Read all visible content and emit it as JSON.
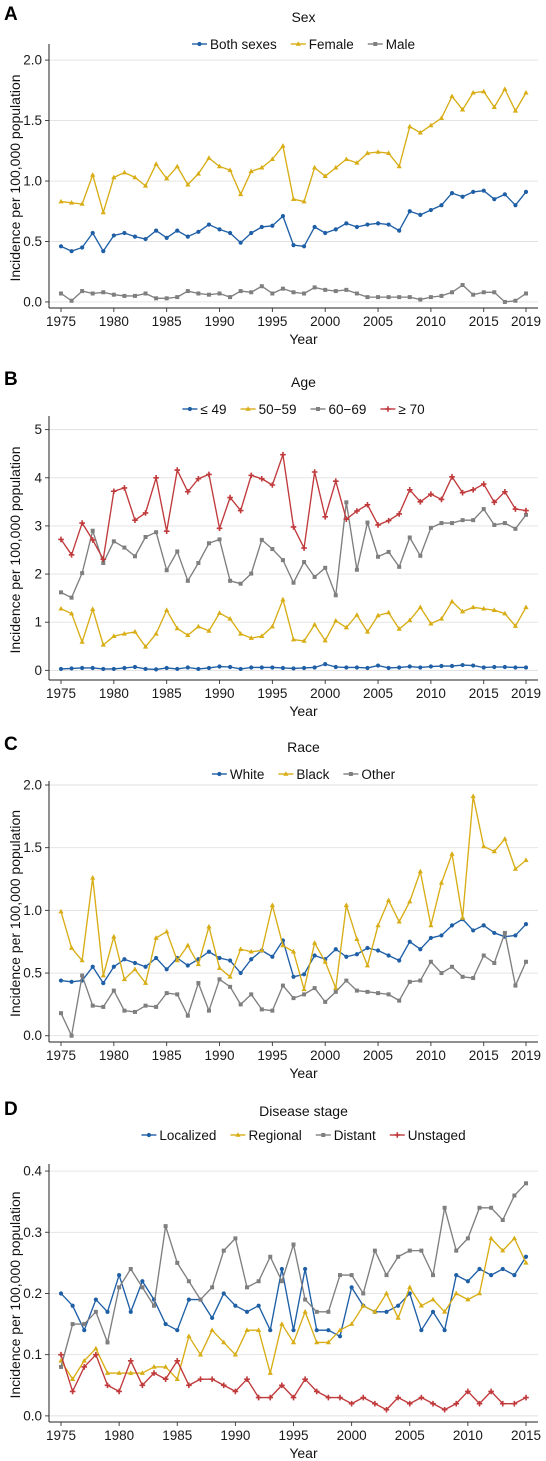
{
  "chart_data": [
    {
      "panel": "A",
      "type": "line",
      "title": "Sex",
      "xlabel": "Year",
      "ylabel": "Incidence per 100,000 population",
      "xlim": [
        1975,
        2019
      ],
      "ylim": [
        -0.05,
        2.1
      ],
      "xticks": [
        1975,
        1980,
        1985,
        1990,
        1995,
        2000,
        2005,
        2010,
        2015,
        2019
      ],
      "yticks": [
        "0.0",
        "0.5",
        "1.0",
        "1.5",
        "2.0"
      ],
      "grid": "horizontal",
      "legend": "top",
      "x": [
        1975,
        1976,
        1977,
        1978,
        1979,
        1980,
        1981,
        1982,
        1983,
        1984,
        1985,
        1986,
        1987,
        1988,
        1989,
        1990,
        1991,
        1992,
        1993,
        1994,
        1995,
        1996,
        1997,
        1998,
        1999,
        2000,
        2001,
        2002,
        2003,
        2004,
        2005,
        2006,
        2007,
        2008,
        2009,
        2010,
        2011,
        2012,
        2013,
        2014,
        2015,
        2016,
        2017,
        2018,
        2019
      ],
      "series": [
        {
          "name": "Both sexes",
          "color": "#1f5fa6",
          "marker": "circle",
          "values": [
            0.46,
            0.42,
            0.45,
            0.57,
            0.42,
            0.55,
            0.57,
            0.54,
            0.52,
            0.59,
            0.53,
            0.59,
            0.54,
            0.58,
            0.64,
            0.6,
            0.57,
            0.49,
            0.57,
            0.62,
            0.63,
            0.71,
            0.47,
            0.46,
            0.62,
            0.57,
            0.6,
            0.65,
            0.62,
            0.64,
            0.65,
            0.64,
            0.59,
            0.75,
            0.72,
            0.76,
            0.8,
            0.9,
            0.87,
            0.91,
            0.92,
            0.85,
            0.89,
            0.8,
            0.91
          ]
        },
        {
          "name": "Female",
          "color": "#d8ad16",
          "marker": "triangle",
          "values": [
            0.83,
            0.82,
            0.81,
            1.05,
            0.74,
            1.03,
            1.07,
            1.03,
            0.96,
            1.14,
            1.02,
            1.12,
            0.97,
            1.06,
            1.19,
            1.12,
            1.09,
            0.89,
            1.08,
            1.11,
            1.18,
            1.29,
            0.85,
            0.83,
            1.11,
            1.04,
            1.11,
            1.18,
            1.15,
            1.23,
            1.24,
            1.23,
            1.12,
            1.45,
            1.4,
            1.46,
            1.52,
            1.7,
            1.59,
            1.73,
            1.74,
            1.61,
            1.76,
            1.58,
            1.73
          ]
        },
        {
          "name": "Male",
          "color": "#7f7f7f",
          "marker": "square",
          "values": [
            0.07,
            0.01,
            0.09,
            0.07,
            0.08,
            0.06,
            0.05,
            0.05,
            0.07,
            0.03,
            0.03,
            0.04,
            0.09,
            0.07,
            0.06,
            0.07,
            0.04,
            0.09,
            0.08,
            0.13,
            0.07,
            0.11,
            0.08,
            0.07,
            0.12,
            0.1,
            0.09,
            0.1,
            0.07,
            0.04,
            0.04,
            0.04,
            0.04,
            0.04,
            0.02,
            0.04,
            0.05,
            0.08,
            0.14,
            0.06,
            0.08,
            0.08,
            0.0,
            0.01,
            0.07
          ]
        }
      ]
    },
    {
      "panel": "B",
      "type": "line",
      "title": "Age",
      "xlabel": "Year",
      "ylabel": "Incidence per 100,000 population",
      "xlim": [
        1975,
        2019
      ],
      "ylim": [
        -0.2,
        5.2
      ],
      "xticks": [
        1975,
        1980,
        1985,
        1990,
        1995,
        2000,
        2005,
        2010,
        2015,
        2019
      ],
      "yticks": [
        "0",
        "1",
        "2",
        "3",
        "4",
        "5"
      ],
      "grid": "horizontal",
      "legend": "top",
      "x": [
        1975,
        1976,
        1977,
        1978,
        1979,
        1980,
        1981,
        1982,
        1983,
        1984,
        1985,
        1986,
        1987,
        1988,
        1989,
        1990,
        1991,
        1992,
        1993,
        1994,
        1995,
        1996,
        1997,
        1998,
        1999,
        2000,
        2001,
        2002,
        2003,
        2004,
        2005,
        2006,
        2007,
        2008,
        2009,
        2010,
        2011,
        2012,
        2013,
        2014,
        2015,
        2016,
        2017,
        2018,
        2019
      ],
      "series": [
        {
          "name": "≤ 49",
          "color": "#1f5fa6",
          "marker": "circle",
          "values": [
            0.03,
            0.04,
            0.05,
            0.05,
            0.03,
            0.03,
            0.05,
            0.07,
            0.03,
            0.02,
            0.05,
            0.03,
            0.06,
            0.03,
            0.05,
            0.08,
            0.07,
            0.03,
            0.06,
            0.06,
            0.06,
            0.05,
            0.04,
            0.05,
            0.06,
            0.13,
            0.07,
            0.06,
            0.06,
            0.05,
            0.1,
            0.05,
            0.06,
            0.08,
            0.06,
            0.08,
            0.09,
            0.09,
            0.11,
            0.1,
            0.06,
            0.07,
            0.07,
            0.06,
            0.06
          ]
        },
        {
          "name": "50−59",
          "color": "#d8ad16",
          "marker": "triangle",
          "values": [
            1.28,
            1.18,
            0.59,
            1.27,
            0.53,
            0.71,
            0.76,
            0.8,
            0.49,
            0.76,
            1.25,
            0.87,
            0.73,
            0.91,
            0.82,
            1.19,
            1.07,
            0.76,
            0.67,
            0.71,
            0.91,
            1.47,
            0.64,
            0.61,
            0.95,
            0.62,
            1.03,
            0.89,
            1.15,
            0.8,
            1.14,
            1.2,
            0.86,
            1.04,
            1.31,
            0.97,
            1.07,
            1.43,
            1.22,
            1.31,
            1.28,
            1.25,
            1.18,
            0.92,
            1.31
          ]
        },
        {
          "name": "60−69",
          "color": "#7f7f7f",
          "marker": "square",
          "values": [
            1.62,
            1.51,
            2.02,
            2.9,
            2.23,
            2.68,
            2.55,
            2.37,
            2.77,
            2.87,
            2.08,
            2.47,
            1.86,
            2.23,
            2.64,
            2.72,
            1.86,
            1.8,
            2.01,
            2.71,
            2.52,
            2.29,
            1.82,
            2.25,
            1.94,
            2.13,
            1.56,
            3.49,
            2.09,
            3.07,
            2.36,
            2.46,
            2.15,
            2.76,
            2.38,
            2.96,
            3.06,
            3.06,
            3.12,
            3.12,
            3.35,
            3.02,
            3.06,
            2.94,
            3.23
          ]
        },
        {
          "name": "≥ 70",
          "color": "#c0393b",
          "marker": "plus",
          "values": [
            2.72,
            2.4,
            3.06,
            2.71,
            2.31,
            3.72,
            3.79,
            3.12,
            3.27,
            4.0,
            2.89,
            4.16,
            3.71,
            3.98,
            4.07,
            2.95,
            3.59,
            3.32,
            4.05,
            3.98,
            3.85,
            4.48,
            2.98,
            2.54,
            4.12,
            3.19,
            3.93,
            3.14,
            3.31,
            3.44,
            3.02,
            3.11,
            3.25,
            3.75,
            3.5,
            3.66,
            3.55,
            4.02,
            3.69,
            3.75,
            3.87,
            3.49,
            3.71,
            3.35,
            3.32
          ]
        }
      ]
    },
    {
      "panel": "C",
      "type": "line",
      "title": "Race",
      "xlabel": "Year",
      "ylabel": "Incidence per 100,000 population",
      "xlim": [
        1975,
        2019
      ],
      "ylim": [
        -0.05,
        2.0
      ],
      "xticks": [
        1975,
        1980,
        1985,
        1990,
        1995,
        2000,
        2005,
        2010,
        2015,
        2019
      ],
      "yticks": [
        "0.0",
        "0.5",
        "1.0",
        "1.5",
        "2.0"
      ],
      "grid": "horizontal",
      "legend": "top",
      "x": [
        1975,
        1976,
        1977,
        1978,
        1979,
        1980,
        1981,
        1982,
        1983,
        1984,
        1985,
        1986,
        1987,
        1988,
        1989,
        1990,
        1991,
        1992,
        1993,
        1994,
        1995,
        1996,
        1997,
        1998,
        1999,
        2000,
        2001,
        2002,
        2003,
        2004,
        2005,
        2006,
        2007,
        2008,
        2009,
        2010,
        2011,
        2012,
        2013,
        2014,
        2015,
        2016,
        2017,
        2018,
        2019
      ],
      "series": [
        {
          "name": "White",
          "color": "#1f5fa6",
          "marker": "circle",
          "values": [
            0.44,
            0.43,
            0.44,
            0.55,
            0.42,
            0.55,
            0.61,
            0.58,
            0.55,
            0.62,
            0.53,
            0.62,
            0.56,
            0.61,
            0.67,
            0.62,
            0.6,
            0.5,
            0.61,
            0.68,
            0.63,
            0.76,
            0.47,
            0.49,
            0.64,
            0.61,
            0.69,
            0.63,
            0.65,
            0.7,
            0.68,
            0.64,
            0.6,
            0.75,
            0.69,
            0.78,
            0.8,
            0.88,
            0.93,
            0.84,
            0.88,
            0.82,
            0.79,
            0.8,
            0.89
          ]
        },
        {
          "name": "Black",
          "color": "#d8ad16",
          "marker": "triangle",
          "values": [
            0.99,
            0.7,
            0.6,
            1.26,
            0.48,
            0.79,
            0.45,
            0.53,
            0.42,
            0.78,
            0.83,
            0.6,
            0.72,
            0.57,
            0.87,
            0.54,
            0.47,
            0.69,
            0.67,
            0.68,
            1.04,
            0.72,
            0.67,
            0.37,
            0.74,
            0.59,
            0.38,
            1.04,
            0.77,
            0.56,
            0.88,
            1.08,
            0.91,
            1.07,
            1.31,
            0.88,
            1.22,
            1.45,
            0.94,
            1.91,
            1.51,
            1.47,
            1.57,
            1.33,
            1.4
          ]
        },
        {
          "name": "Other",
          "color": "#7f7f7f",
          "marker": "square",
          "values": [
            0.18,
            0.0,
            0.48,
            0.24,
            0.23,
            0.36,
            0.2,
            0.19,
            0.24,
            0.23,
            0.34,
            0.33,
            0.16,
            0.42,
            0.2,
            0.45,
            0.39,
            0.25,
            0.33,
            0.21,
            0.2,
            0.4,
            0.3,
            0.33,
            0.38,
            0.27,
            0.35,
            0.44,
            0.36,
            0.35,
            0.34,
            0.33,
            0.28,
            0.43,
            0.44,
            0.59,
            0.5,
            0.55,
            0.47,
            0.46,
            0.64,
            0.58,
            0.82,
            0.4,
            0.59
          ]
        }
      ]
    },
    {
      "panel": "D",
      "type": "line",
      "title": "Disease stage",
      "xlabel": "Year",
      "ylabel": "Incidence per 100,000 population",
      "xlim": [
        1975,
        2015
      ],
      "ylim": [
        -0.01,
        0.405
      ],
      "xticks": [
        1975,
        1980,
        1985,
        1990,
        1995,
        2000,
        2005,
        2010,
        2015
      ],
      "yticks": [
        "0.0",
        "0.1",
        "0.2",
        "0.3",
        "0.4"
      ],
      "grid": "horizontal",
      "legend": "top",
      "x": [
        1975,
        1976,
        1977,
        1978,
        1979,
        1980,
        1981,
        1982,
        1983,
        1984,
        1985,
        1986,
        1987,
        1988,
        1989,
        1990,
        1991,
        1992,
        1993,
        1994,
        1995,
        1996,
        1997,
        1998,
        1999,
        2000,
        2001,
        2002,
        2003,
        2004,
        2005,
        2006,
        2007,
        2008,
        2009,
        2010,
        2011,
        2012,
        2013,
        2014,
        2015
      ],
      "series": [
        {
          "name": "Localized",
          "color": "#1f5fa6",
          "marker": "circle",
          "values": [
            0.2,
            0.18,
            0.14,
            0.19,
            0.17,
            0.23,
            0.17,
            0.22,
            0.19,
            0.15,
            0.14,
            0.19,
            0.19,
            0.16,
            0.2,
            0.18,
            0.17,
            0.18,
            0.14,
            0.24,
            0.14,
            0.24,
            0.14,
            0.14,
            0.13,
            0.21,
            0.18,
            0.17,
            0.17,
            0.18,
            0.2,
            0.14,
            0.17,
            0.14,
            0.23,
            0.22,
            0.24,
            0.23,
            0.24,
            0.23,
            0.26
          ]
        },
        {
          "name": "Regional",
          "color": "#d8ad16",
          "marker": "triangle",
          "values": [
            0.09,
            0.06,
            0.09,
            0.11,
            0.07,
            0.07,
            0.07,
            0.07,
            0.08,
            0.08,
            0.06,
            0.13,
            0.1,
            0.14,
            0.12,
            0.1,
            0.14,
            0.14,
            0.07,
            0.15,
            0.12,
            0.17,
            0.12,
            0.12,
            0.14,
            0.15,
            0.18,
            0.17,
            0.2,
            0.16,
            0.21,
            0.18,
            0.19,
            0.17,
            0.2,
            0.19,
            0.2,
            0.29,
            0.27,
            0.29,
            0.25
          ]
        },
        {
          "name": "Distant",
          "color": "#7f7f7f",
          "marker": "square",
          "values": [
            0.08,
            0.15,
            0.15,
            0.17,
            0.12,
            0.21,
            0.24,
            0.21,
            0.18,
            0.31,
            0.25,
            0.22,
            0.19,
            0.21,
            0.27,
            0.29,
            0.21,
            0.22,
            0.26,
            0.22,
            0.28,
            0.19,
            0.17,
            0.17,
            0.23,
            0.23,
            0.2,
            0.27,
            0.23,
            0.26,
            0.27,
            0.27,
            0.23,
            0.34,
            0.27,
            0.29,
            0.34,
            0.34,
            0.32,
            0.36,
            0.38
          ]
        },
        {
          "name": "Unstaged",
          "color": "#c0393b",
          "marker": "plus",
          "values": [
            0.1,
            0.04,
            0.08,
            0.1,
            0.05,
            0.04,
            0.09,
            0.05,
            0.07,
            0.06,
            0.09,
            0.05,
            0.06,
            0.06,
            0.05,
            0.04,
            0.06,
            0.03,
            0.03,
            0.05,
            0.03,
            0.06,
            0.04,
            0.03,
            0.03,
            0.02,
            0.03,
            0.02,
            0.01,
            0.03,
            0.02,
            0.03,
            0.02,
            0.01,
            0.02,
            0.04,
            0.02,
            0.04,
            0.02,
            0.02,
            0.03
          ]
        }
      ]
    }
  ]
}
